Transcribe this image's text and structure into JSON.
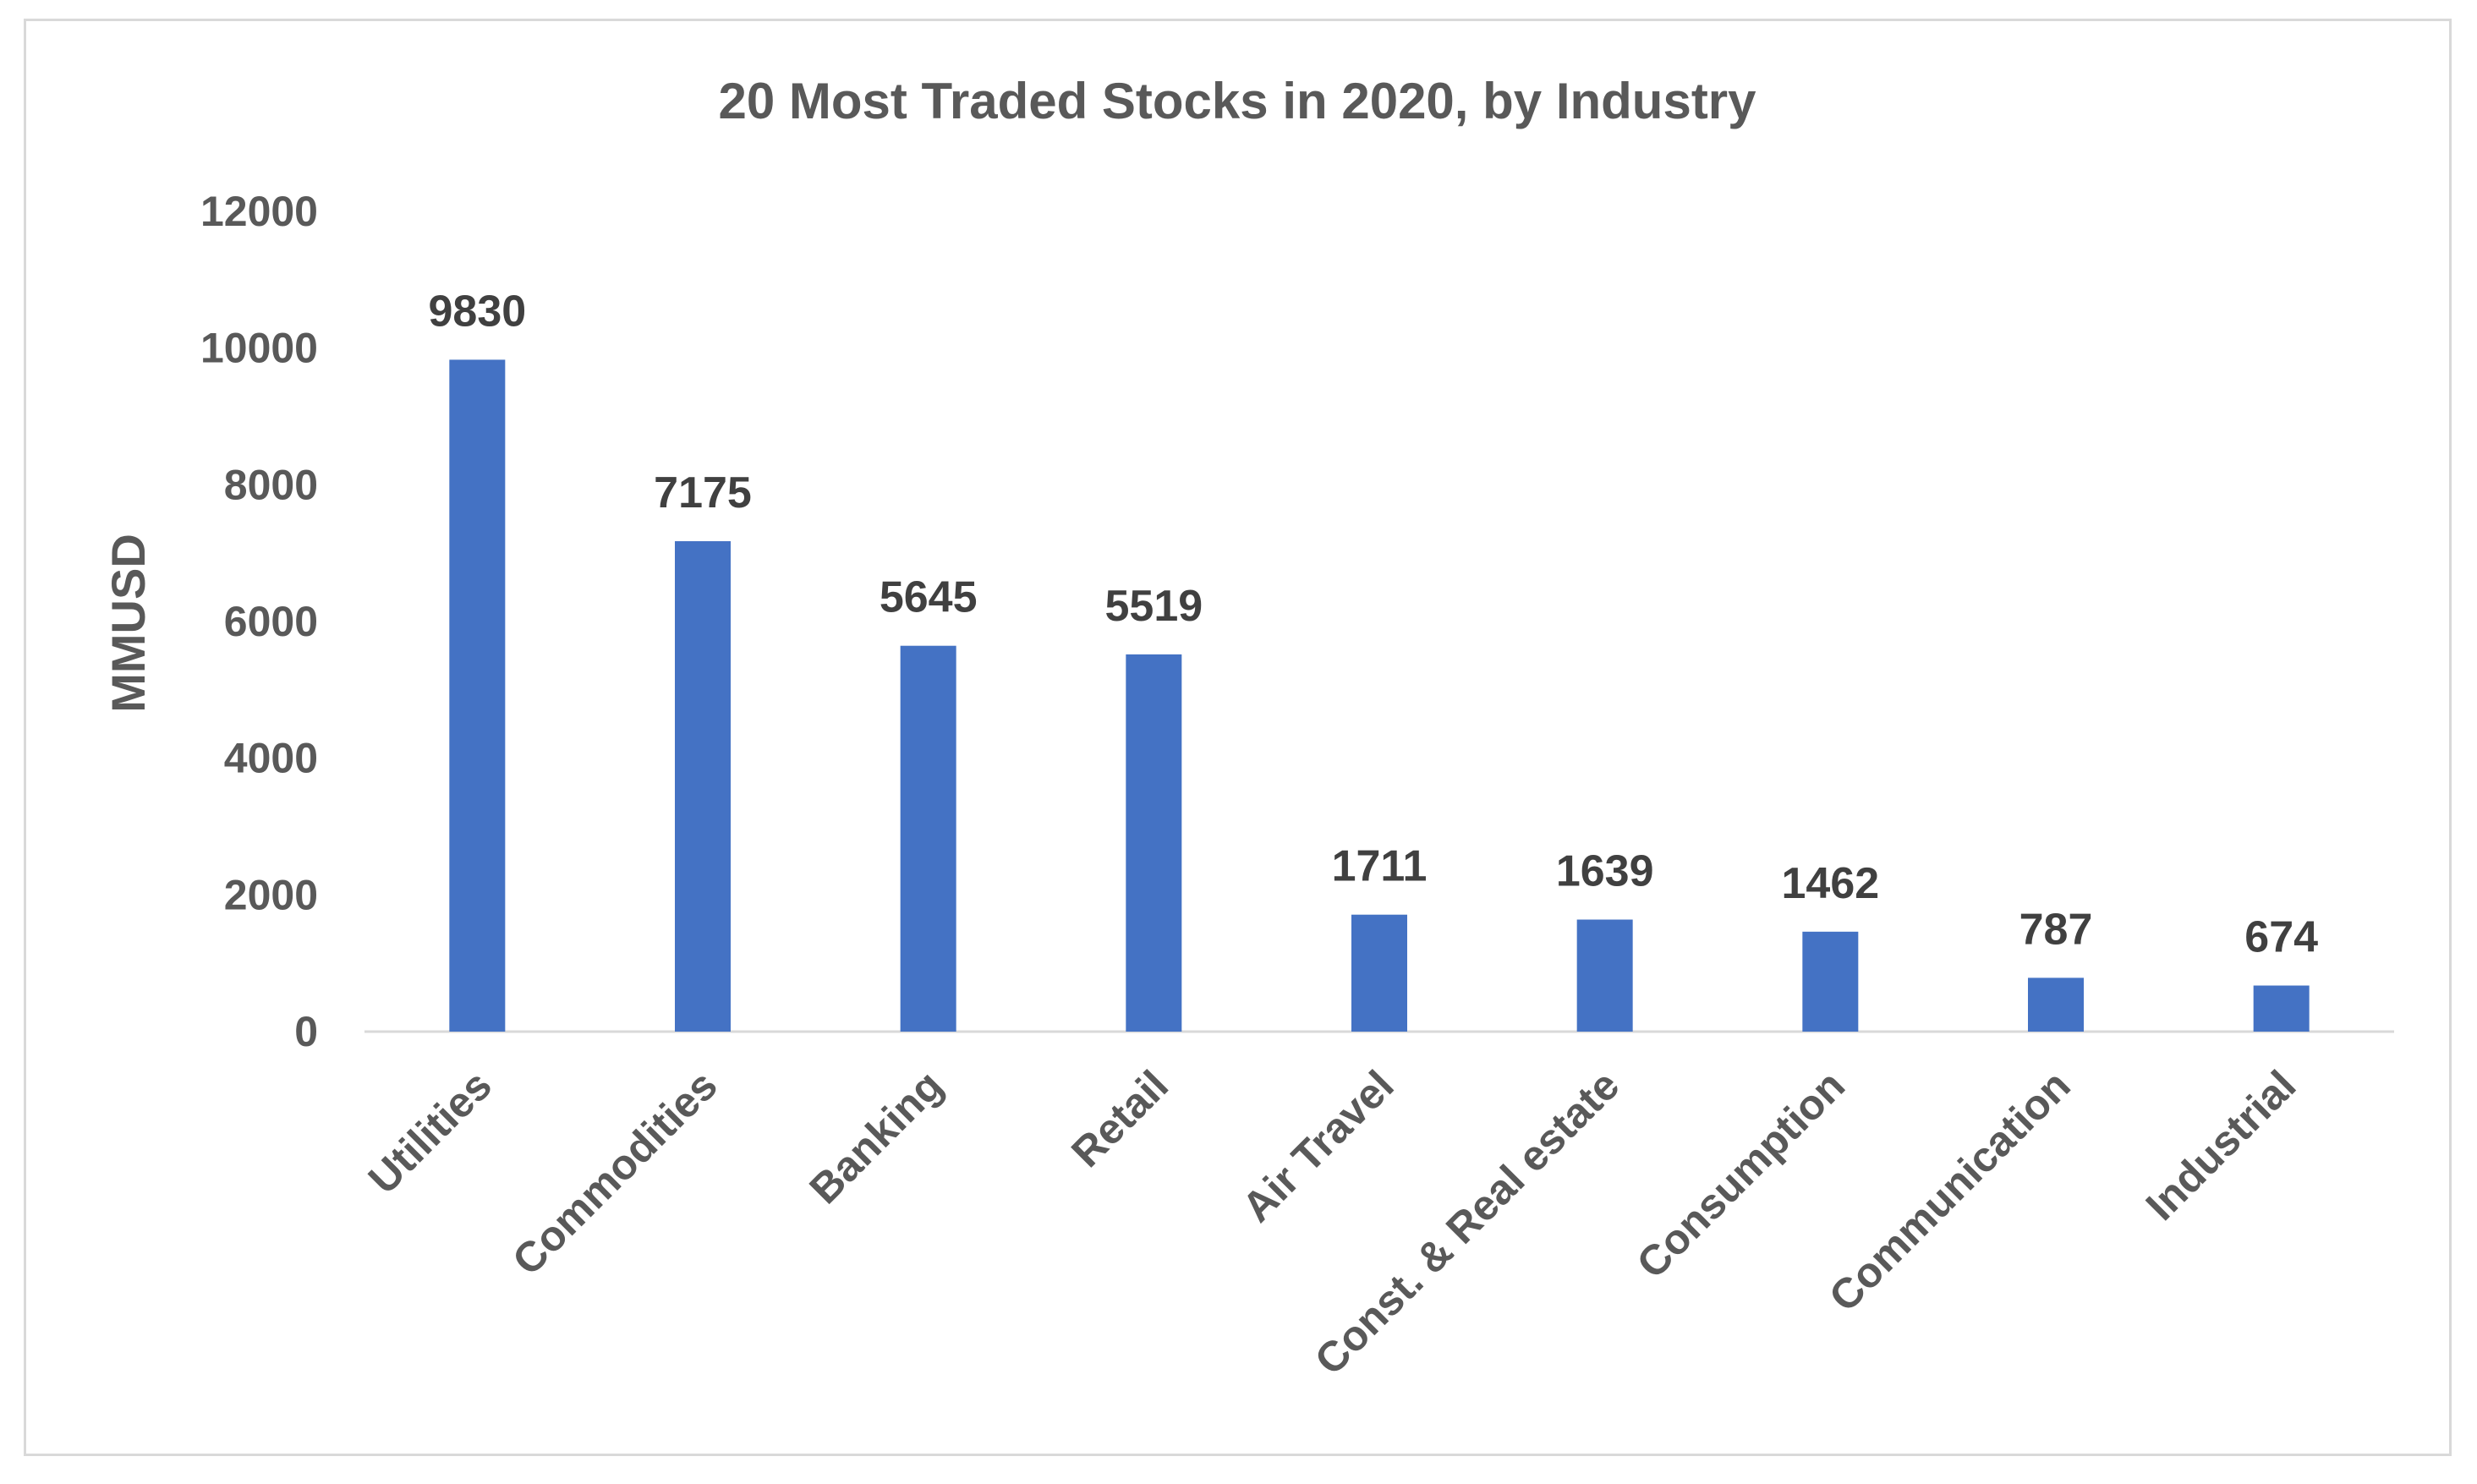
{
  "chart_data": {
    "type": "bar",
    "title": "20 Most Traded Stocks in 2020, by Industry",
    "xlabel": "",
    "ylabel": "MMUSD",
    "categories": [
      "Utilities",
      "Commodities",
      "Banking",
      "Retail",
      "Air Travel",
      "Const. & Real estate",
      "Consumption",
      "Communication",
      "Industrial"
    ],
    "values": [
      9830,
      7175,
      5645,
      5519,
      1711,
      1639,
      1462,
      787,
      674
    ],
    "data_labels": [
      "9830",
      "7175",
      "5645",
      "5519",
      "1711",
      "1639",
      "1462",
      "787",
      "674"
    ],
    "ylim": [
      0,
      12000
    ],
    "yticks": [
      0,
      2000,
      4000,
      6000,
      8000,
      10000,
      12000
    ],
    "ytick_labels": [
      "0",
      "2000",
      "4000",
      "6000",
      "8000",
      "10000",
      "12000"
    ],
    "grid": false,
    "legend": "none",
    "bar_color": "#4472c4",
    "axis_color": "#d9d9d9",
    "text_color": "#595959",
    "label_color": "#404040"
  }
}
